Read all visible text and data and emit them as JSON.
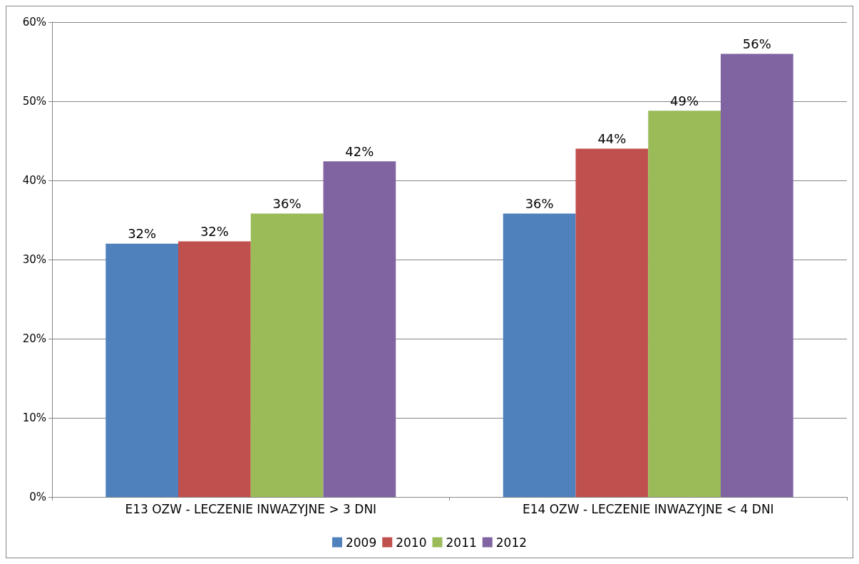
{
  "chart_data": {
    "type": "bar",
    "categories": [
      "E13 OZW - LECZENIE INWAZYJNE > 3 DNI",
      "E14 OZW - LECZENIE INWAZYJNE < 4 DNI"
    ],
    "series": [
      {
        "name": "2009",
        "color": "#4f81bd",
        "values": [
          32,
          35.8
        ],
        "value_labels": [
          "32%",
          "36%"
        ]
      },
      {
        "name": "2010",
        "color": "#c0504d",
        "values": [
          32.3,
          44
        ],
        "value_labels": [
          "32%",
          "44%"
        ]
      },
      {
        "name": "2011",
        "color": "#9bbb59",
        "values": [
          35.8,
          48.8
        ],
        "value_labels": [
          "36%",
          "49%"
        ]
      },
      {
        "name": "2012",
        "color": "#8064a2",
        "values": [
          42.4,
          56
        ],
        "value_labels": [
          "42%",
          "56%"
        ]
      }
    ],
    "ylim": [
      0,
      60
    ],
    "yticks": [
      {
        "value": 0,
        "label": "0%"
      },
      {
        "value": 10,
        "label": "10%"
      },
      {
        "value": 20,
        "label": "20%"
      },
      {
        "value": 30,
        "label": "30%"
      },
      {
        "value": 40,
        "label": "40%"
      },
      {
        "value": 50,
        "label": "50%"
      },
      {
        "value": 60,
        "label": "60%"
      }
    ],
    "grid": "y",
    "legend": "bottom"
  }
}
